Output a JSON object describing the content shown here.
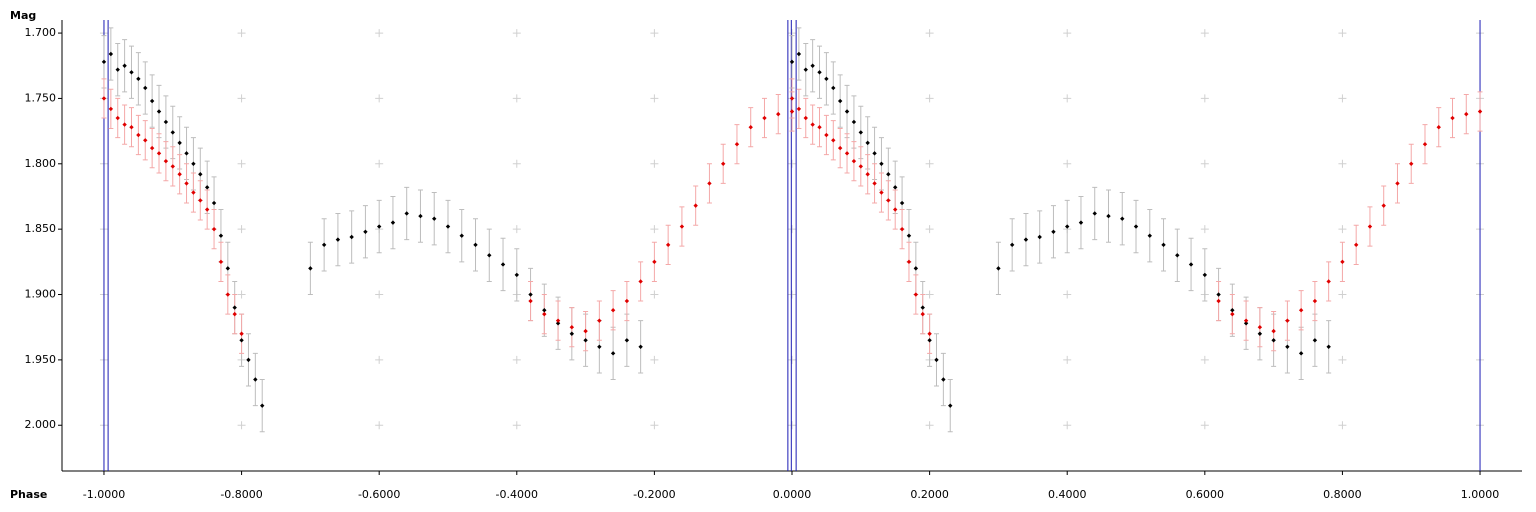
{
  "chart_data": {
    "type": "scatter",
    "xlabel": "Phase",
    "ylabel": "Mag",
    "xlim": [
      -1.061,
      1.061
    ],
    "ylim": [
      1.69,
      2.035
    ],
    "y_inverted": true,
    "grid": true,
    "grid_color": "#d0d0d0",
    "xticks": [
      {
        "value": -1.0,
        "label": "-1.0000"
      },
      {
        "value": -0.8,
        "label": "-0.8000"
      },
      {
        "value": -0.6,
        "label": "-0.6000"
      },
      {
        "value": -0.4,
        "label": "-0.4000"
      },
      {
        "value": -0.2,
        "label": "-0.2000"
      },
      {
        "value": 0,
        "label": "0.0000"
      },
      {
        "value": 0.2,
        "label": "0.2000"
      },
      {
        "value": 0.4,
        "label": "0.4000"
      },
      {
        "value": 0.6,
        "label": "0.6000"
      },
      {
        "value": 0.8,
        "label": "0.8000"
      },
      {
        "value": 1.0,
        "label": "1.0000"
      }
    ],
    "yticks": [
      {
        "value": 1.7,
        "label": "1.700"
      },
      {
        "value": 1.75,
        "label": "1.750"
      },
      {
        "value": 1.8,
        "label": "1.800"
      },
      {
        "value": 1.85,
        "label": "1.850"
      },
      {
        "value": 1.9,
        "label": "1.900"
      },
      {
        "value": 1.95,
        "label": "1.950"
      },
      {
        "value": 2.0,
        "label": "2.000"
      }
    ],
    "vlines": [
      -1.0,
      -0.994,
      -0.006,
      -0.001,
      0.006,
      1.0
    ],
    "vline_color": "#1c1cb4",
    "series": [
      {
        "color": "#000000",
        "error_color": "#bdbdbd",
        "error": 0.02,
        "x": [
          -1.0,
          -0.99,
          -0.98,
          -0.97,
          -0.96,
          -0.95,
          -0.94,
          -0.93,
          -0.92,
          -0.91,
          -0.9,
          -0.89,
          -0.88,
          -0.87,
          -0.86,
          -0.85,
          -0.84,
          -0.83,
          -0.82,
          -0.81,
          -0.8,
          -0.79,
          -0.78,
          -0.77,
          -0.7,
          -0.68,
          -0.66,
          -0.64,
          -0.62,
          -0.6,
          -0.58,
          -0.56,
          -0.54,
          -0.52,
          -0.5,
          -0.48,
          -0.46,
          -0.44,
          -0.42,
          -0.4,
          -0.38,
          -0.36,
          -0.34,
          -0.32,
          -0.3,
          -0.28,
          -0.26,
          -0.24,
          -0.22,
          0.0,
          0.01,
          0.02,
          0.03,
          0.04,
          0.05,
          0.06,
          0.07,
          0.08,
          0.09,
          0.1,
          0.11,
          0.12,
          0.13,
          0.14,
          0.15,
          0.16,
          0.17,
          0.18,
          0.19,
          0.2,
          0.21,
          0.22,
          0.23,
          0.3,
          0.32,
          0.34,
          0.36,
          0.38,
          0.4,
          0.42,
          0.44,
          0.46,
          0.48,
          0.5,
          0.52,
          0.54,
          0.56,
          0.58,
          0.6,
          0.62,
          0.64,
          0.66,
          0.68,
          0.7,
          0.72,
          0.74,
          0.76,
          0.78
        ],
        "values": [
          1.722,
          1.716,
          1.728,
          1.725,
          1.73,
          1.735,
          1.742,
          1.752,
          1.76,
          1.768,
          1.776,
          1.784,
          1.792,
          1.8,
          1.808,
          1.818,
          1.83,
          1.855,
          1.88,
          1.91,
          1.935,
          1.95,
          1.965,
          1.985,
          1.88,
          1.862,
          1.858,
          1.856,
          1.852,
          1.848,
          1.845,
          1.838,
          1.84,
          1.842,
          1.848,
          1.855,
          1.862,
          1.87,
          1.877,
          1.885,
          1.9,
          1.912,
          1.922,
          1.93,
          1.935,
          1.94,
          1.945,
          1.935,
          1.94,
          1.722,
          1.716,
          1.728,
          1.725,
          1.73,
          1.735,
          1.742,
          1.752,
          1.76,
          1.768,
          1.776,
          1.784,
          1.792,
          1.8,
          1.808,
          1.818,
          1.83,
          1.855,
          1.88,
          1.91,
          1.935,
          1.95,
          1.965,
          1.985,
          1.88,
          1.862,
          1.858,
          1.856,
          1.852,
          1.848,
          1.845,
          1.838,
          1.84,
          1.842,
          1.848,
          1.855,
          1.862,
          1.87,
          1.877,
          1.885,
          1.9,
          1.912,
          1.922,
          1.93,
          1.935,
          1.94,
          1.945,
          1.935,
          1.94
        ]
      },
      {
        "color": "#e00000",
        "error_color": "#f4a8a8",
        "error": 0.015,
        "x": [
          -1.0,
          -0.99,
          -0.98,
          -0.97,
          -0.96,
          -0.95,
          -0.94,
          -0.93,
          -0.92,
          -0.91,
          -0.9,
          -0.89,
          -0.88,
          -0.87,
          -0.86,
          -0.85,
          -0.84,
          -0.83,
          -0.82,
          -0.81,
          -0.8,
          -0.38,
          -0.36,
          -0.34,
          -0.32,
          -0.3,
          -0.28,
          -0.26,
          -0.24,
          -0.22,
          -0.2,
          -0.18,
          -0.16,
          -0.14,
          -0.12,
          -0.1,
          -0.08,
          -0.06,
          -0.04,
          -0.02,
          0.0,
          0.0,
          0.01,
          0.02,
          0.03,
          0.04,
          0.05,
          0.06,
          0.07,
          0.08,
          0.09,
          0.1,
          0.11,
          0.12,
          0.13,
          0.14,
          0.15,
          0.16,
          0.17,
          0.18,
          0.19,
          0.2,
          0.62,
          0.64,
          0.66,
          0.68,
          0.7,
          0.72,
          0.74,
          0.76,
          0.78,
          0.8,
          0.82,
          0.84,
          0.86,
          0.88,
          0.9,
          0.92,
          0.94,
          0.96,
          0.98,
          1.0
        ],
        "values": [
          1.75,
          1.758,
          1.765,
          1.77,
          1.772,
          1.778,
          1.782,
          1.788,
          1.792,
          1.798,
          1.802,
          1.808,
          1.815,
          1.822,
          1.828,
          1.835,
          1.85,
          1.875,
          1.9,
          1.915,
          1.93,
          1.905,
          1.915,
          1.92,
          1.925,
          1.928,
          1.92,
          1.912,
          1.905,
          1.89,
          1.875,
          1.862,
          1.848,
          1.832,
          1.815,
          1.8,
          1.785,
          1.772,
          1.765,
          1.762,
          1.76,
          1.75,
          1.758,
          1.765,
          1.77,
          1.772,
          1.778,
          1.782,
          1.788,
          1.792,
          1.798,
          1.802,
          1.808,
          1.815,
          1.822,
          1.828,
          1.835,
          1.85,
          1.875,
          1.9,
          1.915,
          1.93,
          1.905,
          1.915,
          1.92,
          1.925,
          1.928,
          1.92,
          1.912,
          1.905,
          1.89,
          1.875,
          1.862,
          1.848,
          1.832,
          1.815,
          1.8,
          1.785,
          1.772,
          1.765,
          1.762,
          1.76
        ]
      }
    ]
  }
}
